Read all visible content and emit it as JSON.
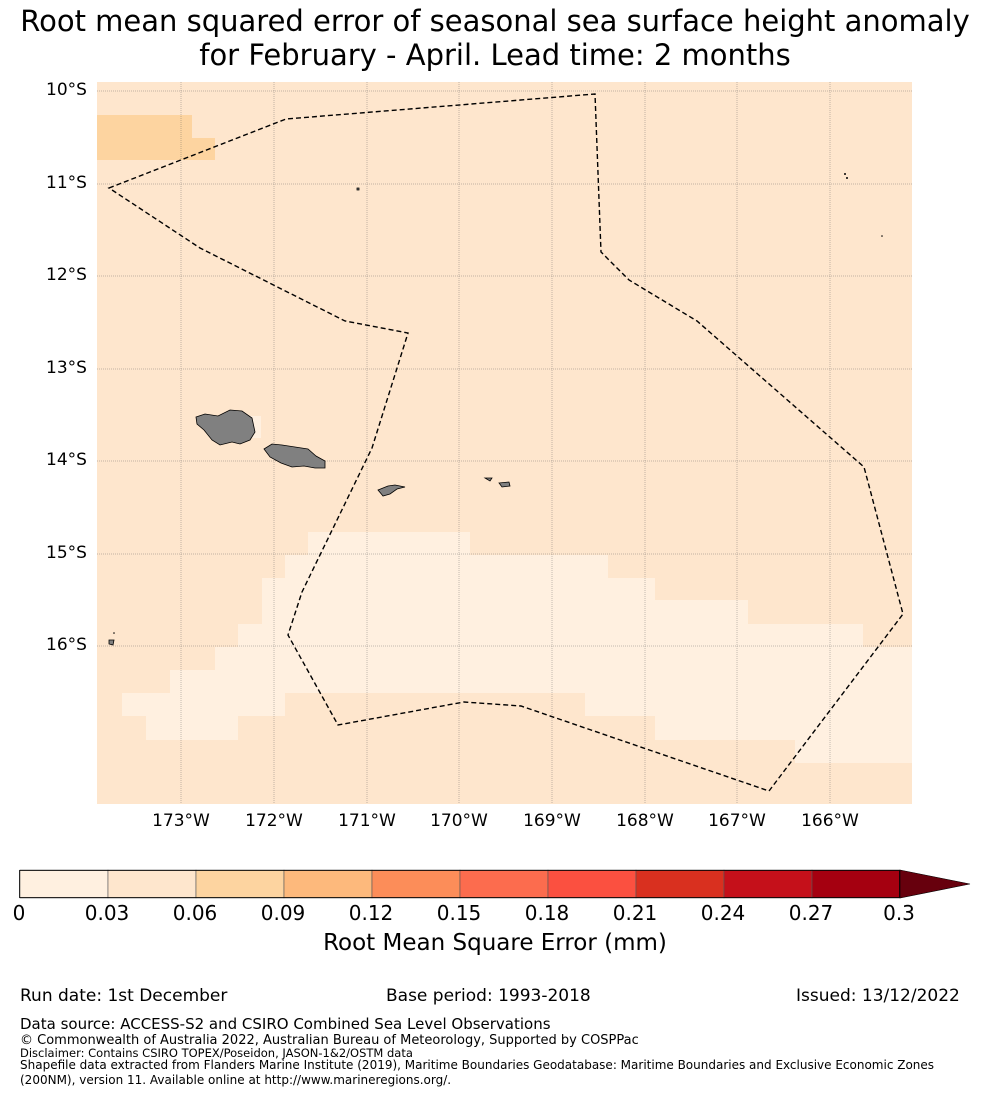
{
  "title": {
    "line1": "Root mean squared error of seasonal sea surface height anomaly",
    "line2": "for February - April. Lead time: 2 months"
  },
  "map": {
    "lat_labels": [
      "10°S",
      "11°S",
      "12°S",
      "13°S",
      "14°S",
      "15°S",
      "16°S"
    ],
    "lon_labels": [
      "173°W",
      "172°W",
      "171°W",
      "170°W",
      "169°W",
      "168°W",
      "167°W",
      "166°W"
    ],
    "land_color": "#808080",
    "boundary_style": "dashed black EEZ outline"
  },
  "colorbar": {
    "ticks": [
      "0",
      "0.03",
      "0.06",
      "0.09",
      "0.12",
      "0.15",
      "0.18",
      "0.21",
      "0.24",
      "0.27",
      "0.3"
    ],
    "colors": [
      "#fff0e0",
      "#fee6cd",
      "#fdd4a0",
      "#fdb97c",
      "#fc8d59",
      "#fc6c4e",
      "#fb5040",
      "#d9301f",
      "#c5101a",
      "#a50010"
    ],
    "extend_color": "#67000d",
    "label": "Root Mean Square Error (mm)"
  },
  "footer": {
    "run_date": "Run date: 1st December",
    "base_period": "Base period: 1993-2018",
    "issued": "Issued: 13/12/2022",
    "source": "Data source: ACCESS-S2 and CSIRO Combined Sea Level Observations",
    "copyright": "© Commonwealth of Australia 2022, Australian Bureau of Meteorology, Supported by COSPPac",
    "disclaimer": "Disclaimer: Contains CSIRO TOPEX/Poseidon, JASON-1&2/OSTM data",
    "shapefile": "Shapefile data extracted from Flanders Marine Institute (2019), Maritime Boundaries Geodatabase: Maritime Boundaries and Exclusive Economic Zones (200NM), version 11. Available online at http://www.marineregions.org/."
  }
}
